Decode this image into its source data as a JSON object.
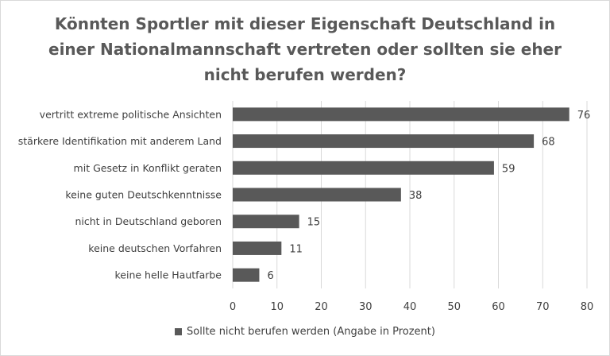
{
  "chart_data": {
    "type": "bar",
    "orientation": "horizontal",
    "title": "Könnten Sportler mit dieser Eigenschaft Deutschland in einer Nationalmannschaft vertreten oder sollten sie eher nicht berufen werden?",
    "categories": [
      "vertritt extreme politische Ansichten",
      "stärkere Identifikation mit anderem Land",
      "mit Gesetz in Konflikt geraten",
      "keine guten Deutschkenntnisse",
      "nicht in Deutschland geboren",
      "keine deutschen Vorfahren",
      "keine helle Hautfarbe"
    ],
    "series": [
      {
        "name": "Sollte nicht berufen werden (Angabe in Prozent)",
        "values": [
          76,
          68,
          59,
          38,
          15,
          11,
          6
        ]
      }
    ],
    "xlim": [
      0,
      80
    ],
    "xticks": [
      0,
      10,
      20,
      30,
      40,
      50,
      60,
      70,
      80
    ],
    "grid": true,
    "data_labels": true,
    "legend_position": "bottom",
    "bar_color": "#595959",
    "grid_color": "#d9d9d9"
  }
}
